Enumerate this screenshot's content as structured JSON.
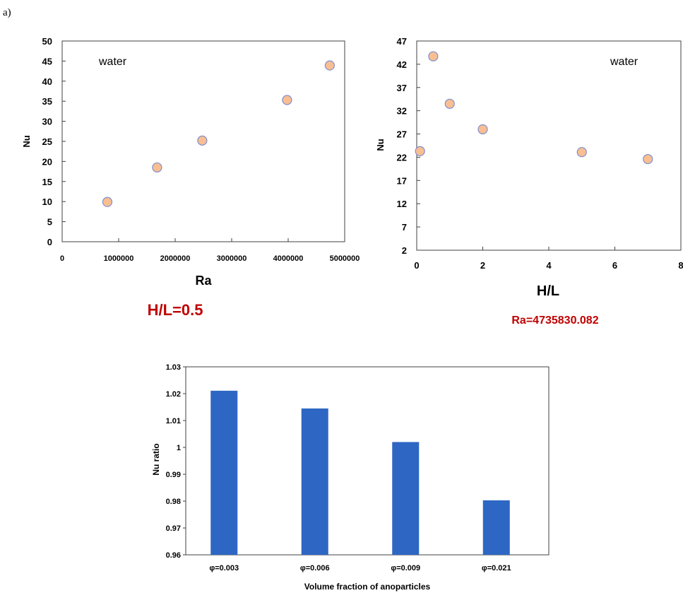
{
  "panel_label": "a)",
  "colors": {
    "marker_fill": "#F9BE92",
    "marker_stroke": "#7F8FCF",
    "bar_fill": "#2E67C3",
    "caption_red": "#C00000",
    "bar_axis_title": "#7F7F7F"
  },
  "chart_data": [
    {
      "type": "scatter",
      "annotation": "water",
      "xlabel": "Ra",
      "ylabel": "Nu",
      "caption": "H/L=0.5",
      "xlim": [
        0,
        5000000
      ],
      "ylim": [
        0,
        50
      ],
      "xticks": [
        0,
        1000000,
        2000000,
        3000000,
        4000000,
        5000000
      ],
      "xtick_labels": [
        "0",
        "1000000",
        "2000000",
        "3000000",
        "4000000",
        "5000000"
      ],
      "yticks": [
        0,
        5,
        10,
        15,
        20,
        25,
        30,
        35,
        40,
        45,
        50
      ],
      "ytick_labels": [
        "0",
        "5",
        "10",
        "15",
        "20",
        "25",
        "30",
        "35",
        "40",
        "45",
        "50"
      ],
      "x": [
        800000,
        1680000,
        2480000,
        3980000,
        4736000
      ],
      "y": [
        9.9,
        18.5,
        25.2,
        35.3,
        43.9
      ],
      "grid": false
    },
    {
      "type": "scatter",
      "annotation": "water",
      "xlabel": "H/L",
      "ylabel": "Nu",
      "caption": "Ra=4735830.082",
      "xlim": [
        0,
        8
      ],
      "ylim": [
        2,
        47
      ],
      "xticks": [
        0,
        2,
        4,
        6,
        8
      ],
      "xtick_labels": [
        "0",
        "2",
        "4",
        "6",
        "8"
      ],
      "yticks": [
        2,
        7,
        12,
        17,
        22,
        27,
        32,
        37,
        42,
        47
      ],
      "ytick_labels": [
        "2",
        "7",
        "12",
        "17",
        "22",
        "27",
        "32",
        "37",
        "42",
        "47"
      ],
      "x": [
        0.1,
        0.5,
        1.0,
        2.0,
        5.0,
        7.0
      ],
      "y": [
        23.3,
        43.7,
        33.5,
        28.0,
        23.1,
        21.6
      ],
      "grid": false
    },
    {
      "type": "bar",
      "xlabel": "Volume fraction of anoparticles",
      "ylabel": "Nu ratio",
      "ylim": [
        0.96,
        1.03
      ],
      "yticks": [
        0.96,
        0.97,
        0.98,
        0.99,
        1.0,
        1.01,
        1.02,
        1.03
      ],
      "ytick_labels": [
        "0.96",
        "0.97",
        "0.98",
        "0.99",
        "1",
        "1.01",
        "1.02",
        "1.03"
      ],
      "categories": [
        "φ=0.003",
        "φ=0.006",
        "φ=0.009",
        "φ=0.021"
      ],
      "values": [
        1.0211,
        1.0145,
        1.002,
        0.9803
      ],
      "grid": false
    }
  ]
}
